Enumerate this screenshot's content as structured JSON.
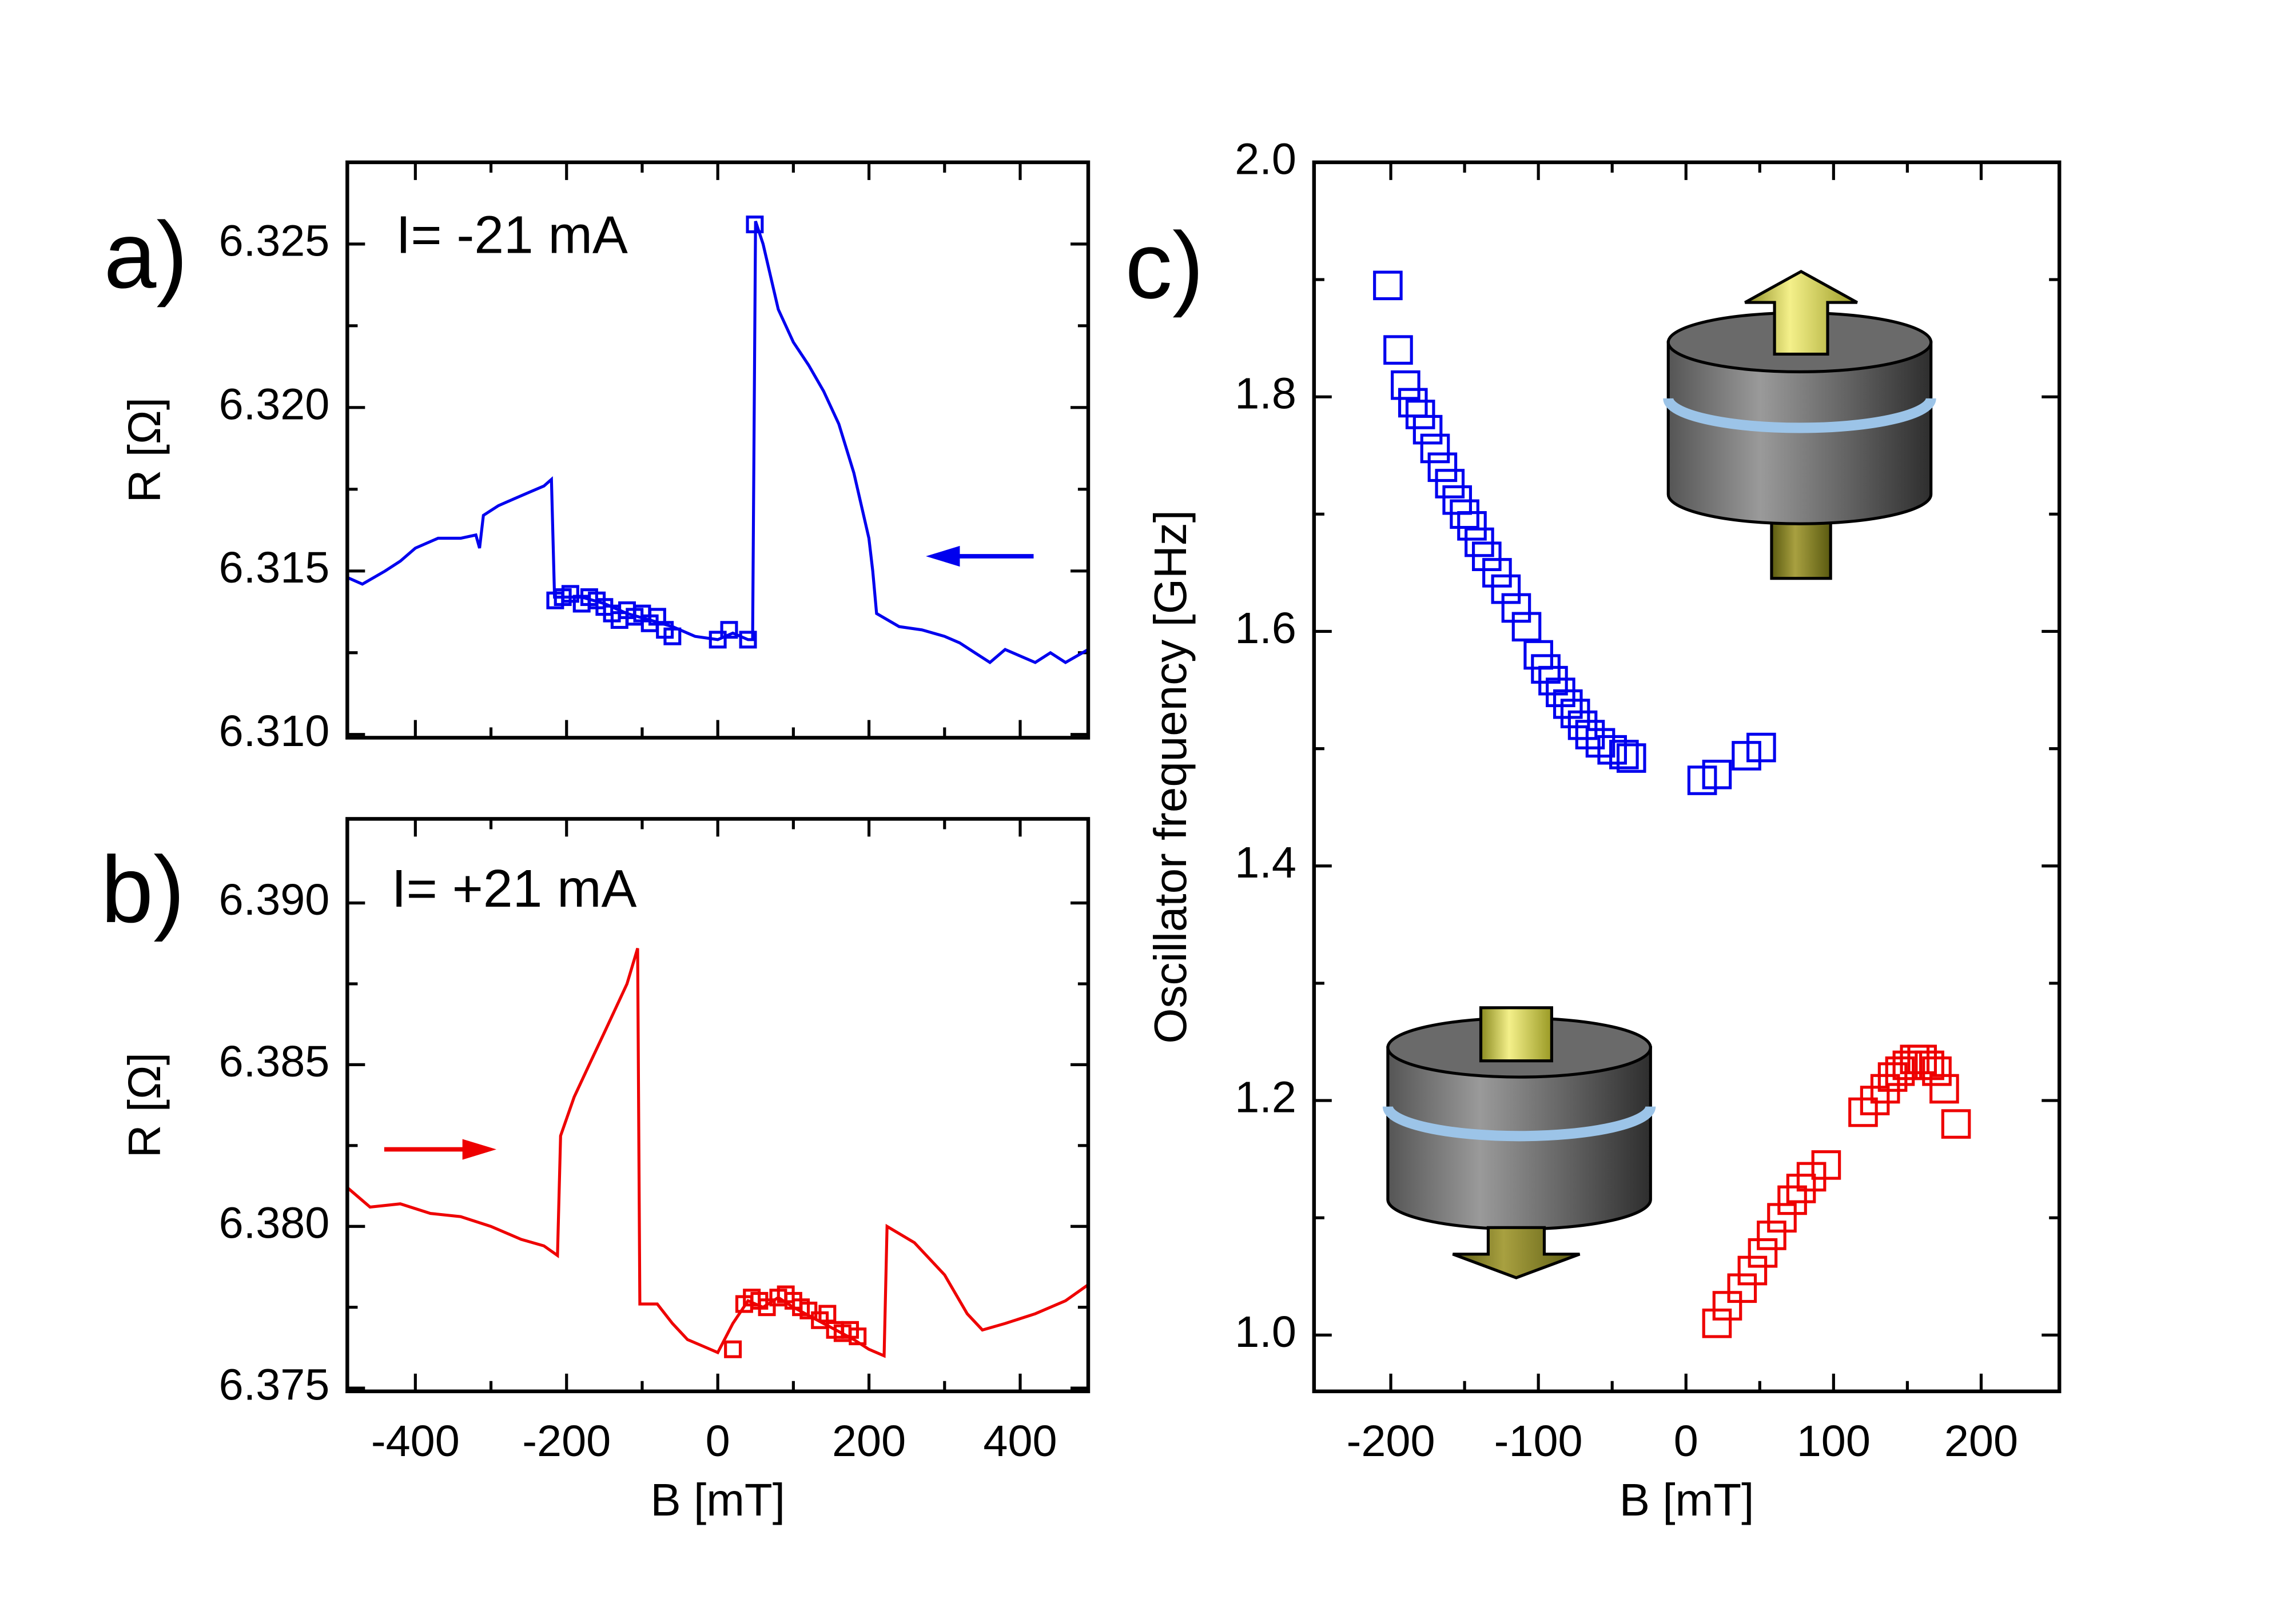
{
  "chart_data": [
    {
      "type": "line",
      "panel_label": "a)",
      "annotation": "I= -21 mA",
      "ylabel": "R [Ω]",
      "xlim": [
        -490,
        490
      ],
      "xticks": [
        -400,
        -200,
        0,
        200,
        400
      ],
      "show_xtick_labels": false,
      "ylim": [
        6.3099,
        6.3275
      ],
      "yticks": [
        {
          "value": 6.31,
          "label": "6.310"
        },
        {
          "value": 6.315,
          "label": "6.315"
        },
        {
          "value": 6.32,
          "label": "6.320"
        },
        {
          "value": 6.325,
          "label": "6.325"
        }
      ],
      "arrow": "left",
      "series": [
        {
          "style": "line",
          "color": "#0000ee",
          "x": [
            -490,
            -470,
            -440,
            -420,
            -400,
            -370,
            -340,
            -320,
            -315,
            -310,
            -290,
            -270,
            -250,
            -230,
            -220,
            -216,
            -200,
            -180,
            -150,
            -120,
            -90,
            -60,
            -30,
            0,
            20,
            40,
            46,
            50,
            60,
            80,
            100,
            120,
            140,
            160,
            180,
            200,
            205,
            210,
            240,
            270,
            300,
            320,
            340,
            360,
            380,
            400,
            420,
            440,
            460,
            490
          ],
          "values": [
            6.3148,
            6.3146,
            6.315,
            6.3153,
            6.3157,
            6.316,
            6.316,
            6.3161,
            6.3157,
            6.3167,
            6.317,
            6.3172,
            6.3174,
            6.3176,
            6.3178,
            6.3142,
            6.3142,
            6.3142,
            6.314,
            6.3137,
            6.3135,
            6.3133,
            6.313,
            6.3129,
            6.3131,
            6.3129,
            6.3129,
            6.3257,
            6.325,
            6.323,
            6.322,
            6.3213,
            6.3205,
            6.3195,
            6.318,
            6.316,
            6.315,
            6.3137,
            6.3133,
            6.3132,
            6.313,
            6.3128,
            6.3125,
            6.3122,
            6.3126,
            6.3124,
            6.3122,
            6.3125,
            6.3122,
            6.3126
          ]
        },
        {
          "style": "square",
          "color": "#0000ee",
          "x": [
            -215,
            -205,
            -195,
            -180,
            -170,
            -160,
            -150,
            -140,
            -130,
            -120,
            -110,
            -100,
            -90,
            -80,
            -70,
            -60,
            0,
            15,
            40,
            49
          ],
          "values": [
            6.3141,
            6.3142,
            6.3143,
            6.314,
            6.3142,
            6.3141,
            6.3139,
            6.3137,
            6.3135,
            6.3138,
            6.3136,
            6.3137,
            6.3134,
            6.3136,
            6.3132,
            6.313,
            6.3129,
            6.3132,
            6.3129,
            6.3256
          ]
        }
      ]
    },
    {
      "type": "line",
      "panel_label": "b)",
      "annotation": "I= +21 mA",
      "ylabel": "R [Ω]",
      "xlabel": "B [mT]",
      "xlim": [
        -490,
        490
      ],
      "xticks": [
        -400,
        -200,
        0,
        200,
        400
      ],
      "ylim": [
        6.3749,
        6.3926
      ],
      "yticks": [
        {
          "value": 6.375,
          "label": "6.375"
        },
        {
          "value": 6.38,
          "label": "6.380"
        },
        {
          "value": 6.385,
          "label": "6.385"
        },
        {
          "value": 6.39,
          "label": "6.390"
        }
      ],
      "arrow": "right",
      "series": [
        {
          "style": "line",
          "color": "#ee0000",
          "x": [
            -490,
            -460,
            -420,
            -380,
            -340,
            -300,
            -260,
            -230,
            -212,
            -208,
            -190,
            -170,
            -150,
            -130,
            -120,
            -106,
            -103,
            -80,
            -60,
            -40,
            -20,
            0,
            20,
            40,
            60,
            80,
            100,
            140,
            180,
            200,
            220,
            224,
            260,
            300,
            330,
            350,
            380,
            420,
            460,
            490
          ],
          "values": [
            6.3812,
            6.3806,
            6.3807,
            6.3804,
            6.3803,
            6.38,
            6.3796,
            6.3794,
            6.3791,
            6.3828,
            6.384,
            6.385,
            6.386,
            6.387,
            6.3875,
            6.3886,
            6.3776,
            6.3776,
            6.377,
            6.3765,
            6.3763,
            6.3761,
            6.377,
            6.3777,
            6.3775,
            6.3778,
            6.3775,
            6.377,
            6.3765,
            6.3762,
            6.376,
            6.38,
            6.3795,
            6.3785,
            6.3773,
            6.3768,
            6.377,
            6.3773,
            6.3777,
            6.3782
          ]
        },
        {
          "style": "square",
          "color": "#ee0000",
          "x": [
            20,
            35,
            45,
            55,
            65,
            80,
            90,
            100,
            110,
            120,
            135,
            145,
            155,
            165,
            175,
            185
          ],
          "values": [
            6.3762,
            6.3776,
            6.3778,
            6.3777,
            6.3775,
            6.3778,
            6.3779,
            6.3777,
            6.3775,
            6.3774,
            6.3771,
            6.3773,
            6.3768,
            6.3767,
            6.3768,
            6.3766
          ]
        }
      ]
    },
    {
      "type": "scatter",
      "panel_label": "c)",
      "ylabel": "Oscillator frequency [GHz]",
      "xlabel": "B [mT]",
      "xlim": [
        -252,
        253
      ],
      "xticks": [
        -200,
        -100,
        0,
        100,
        200
      ],
      "ylim": [
        0.952,
        2.0
      ],
      "yticks": [
        {
          "value": 1,
          "label": "1.0"
        },
        1.2,
        1.4,
        1.6,
        1.8,
        {
          "value": 2,
          "label": "2.0"
        }
      ],
      "series": [
        {
          "style": "square",
          "color": "#0000ee",
          "x": [
            -202,
            -195,
            -190,
            -185,
            -180,
            -175,
            -170,
            -165,
            -160,
            -155,
            -150,
            -145,
            -140,
            -135,
            -128,
            -122,
            -115,
            -108,
            -100,
            -95,
            -90,
            -85,
            -80,
            -75,
            -70,
            -65,
            -58,
            -50,
            -42,
            -37,
            11,
            21,
            41,
            51
          ],
          "values": [
            1.895,
            1.84,
            1.81,
            1.795,
            1.785,
            1.772,
            1.756,
            1.74,
            1.726,
            1.712,
            1.7,
            1.69,
            1.676,
            1.664,
            1.65,
            1.636,
            1.62,
            1.604,
            1.58,
            1.568,
            1.558,
            1.548,
            1.538,
            1.53,
            1.52,
            1.512,
            1.505,
            1.499,
            1.495,
            1.492,
            1.473,
            1.478,
            1.494,
            1.501
          ]
        },
        {
          "style": "square",
          "color": "#ee0000",
          "x": [
            21,
            28,
            38,
            45,
            52,
            58,
            65,
            72,
            78,
            85,
            95,
            120,
            128,
            135,
            140,
            145,
            150,
            155,
            160,
            165,
            170,
            175,
            183
          ],
          "values": [
            1.01,
            1.025,
            1.04,
            1.055,
            1.07,
            1.085,
            1.1,
            1.115,
            1.125,
            1.135,
            1.145,
            1.19,
            1.2,
            1.21,
            1.22,
            1.225,
            1.23,
            1.235,
            1.235,
            1.23,
            1.225,
            1.21,
            1.18
          ]
        }
      ]
    }
  ]
}
